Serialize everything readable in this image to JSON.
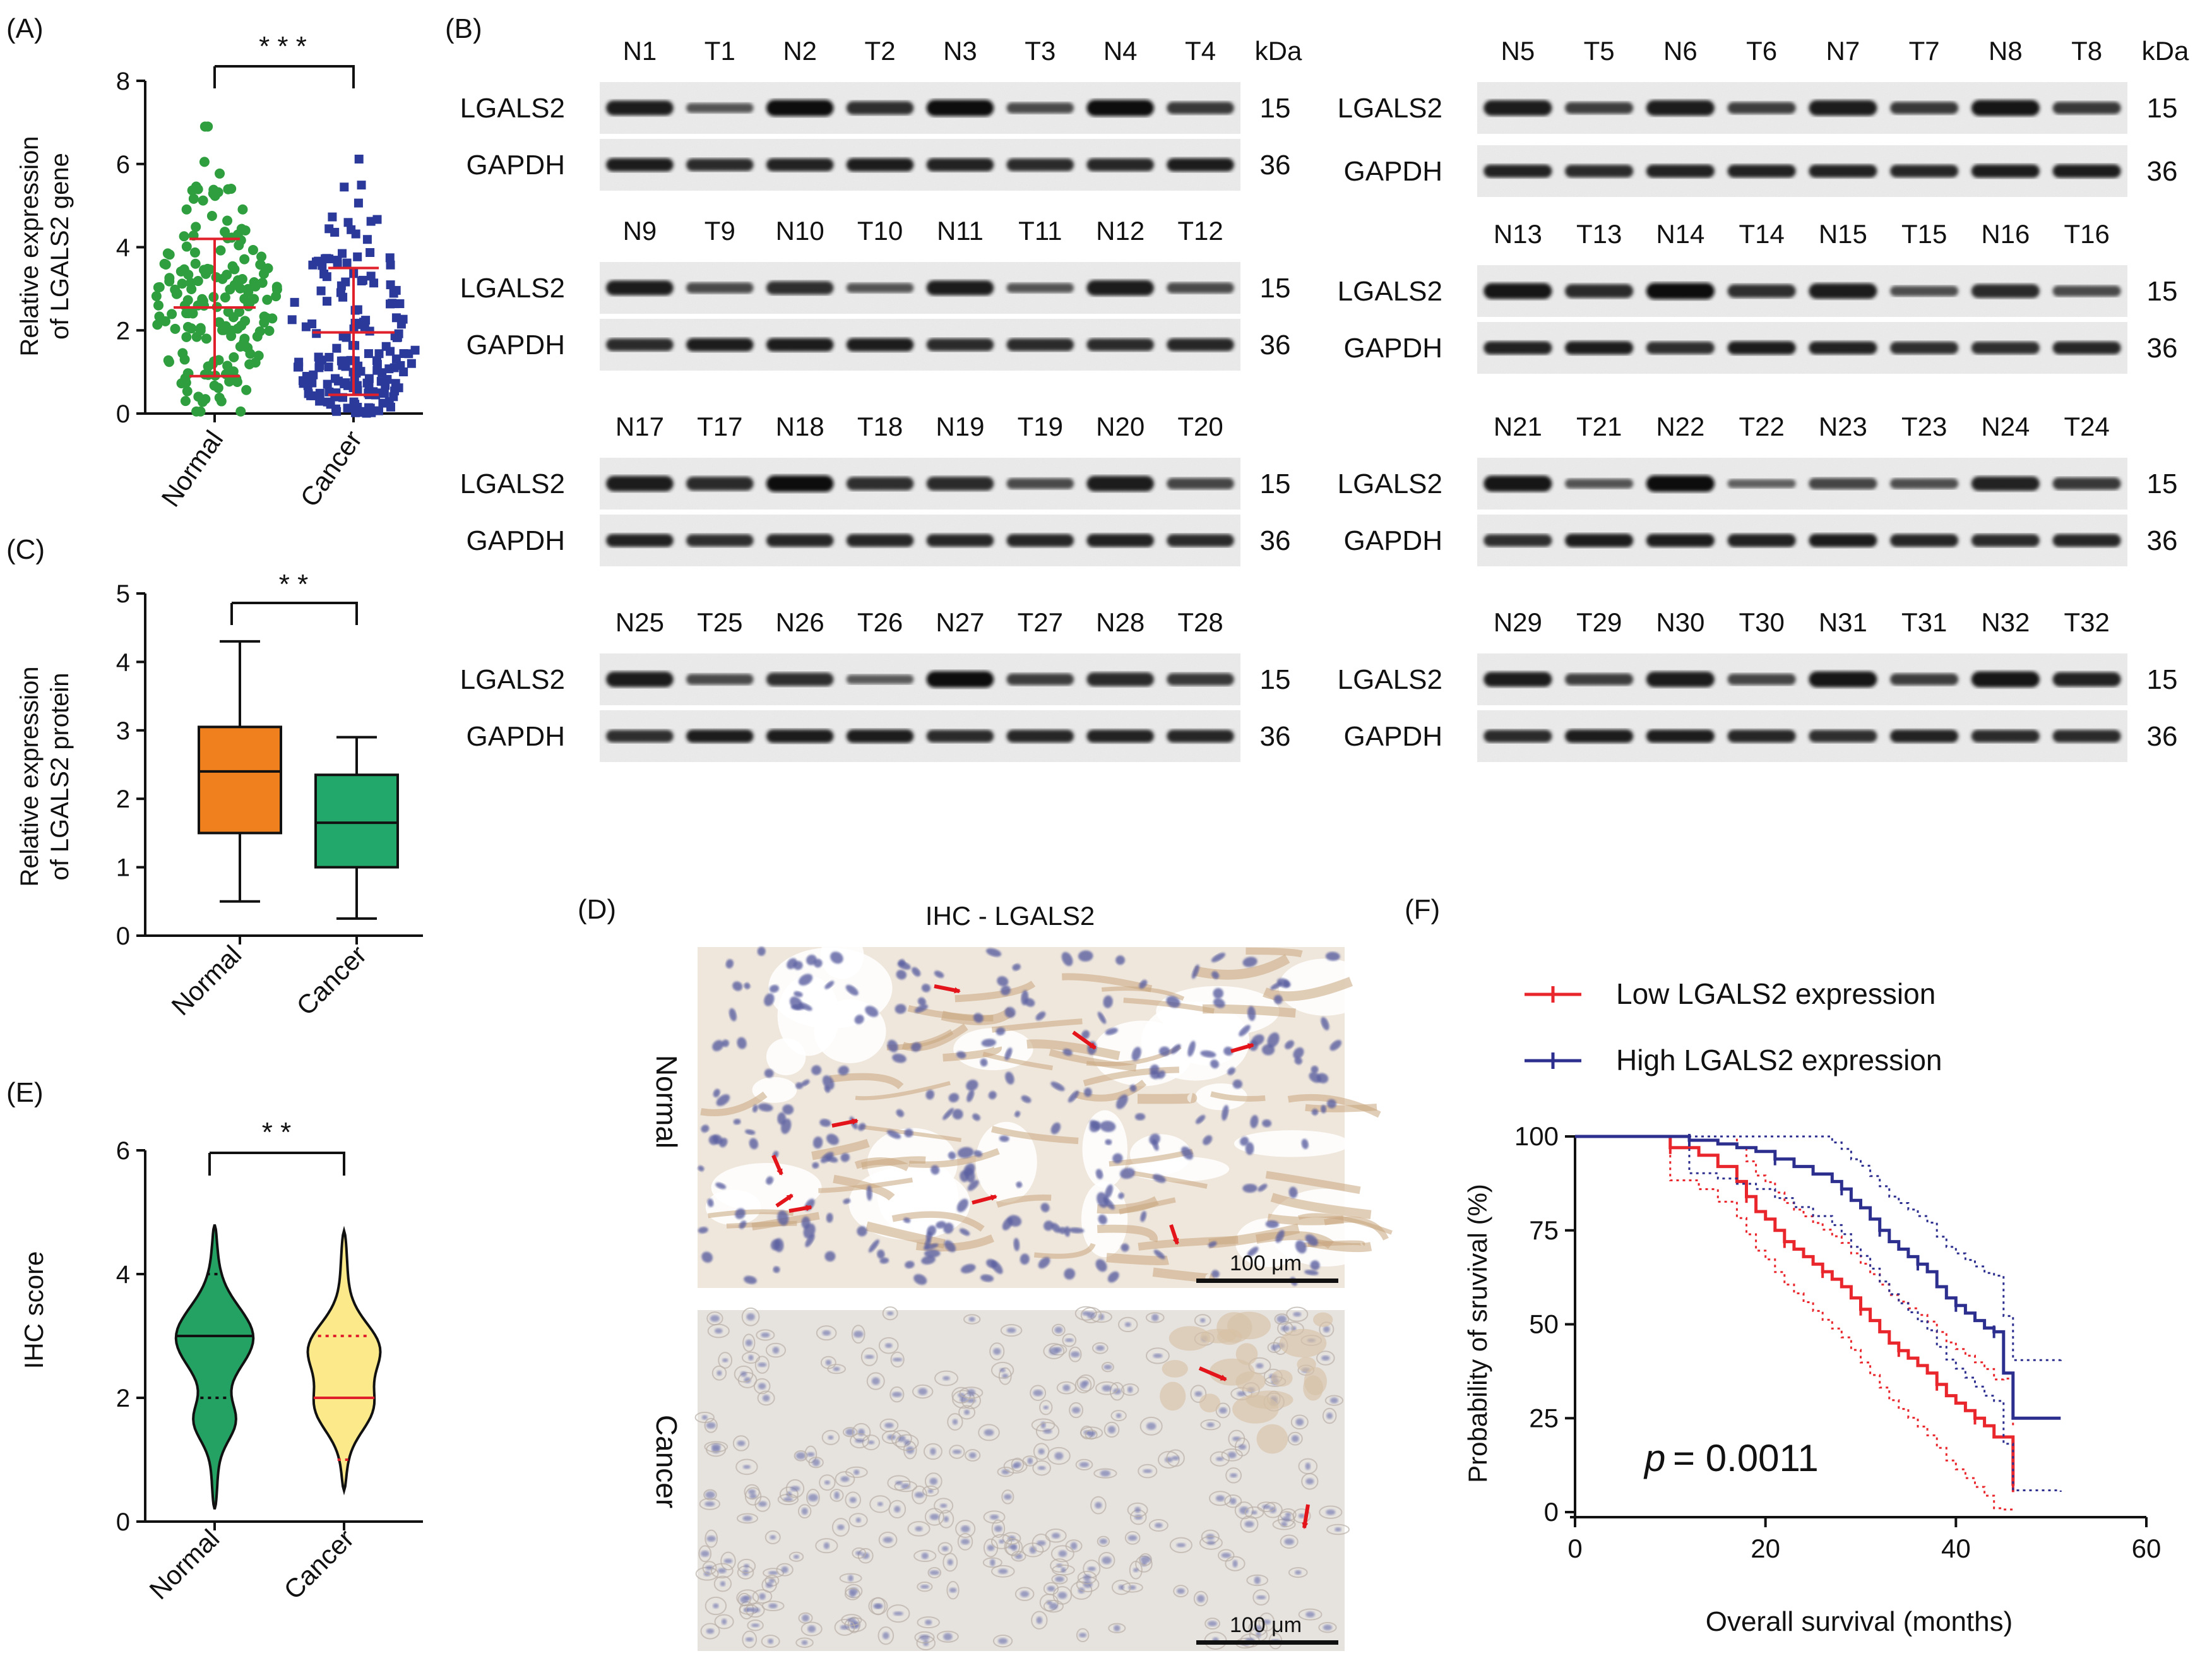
{
  "colors": {
    "normal_green": "#2e9e3e",
    "cancer_blue": "#2b3a9a",
    "median_red": "#e0202a",
    "box_orange": "#f07f1e",
    "box_green": "#22a86b",
    "violin_green": "#23a263",
    "violin_yellow": "#fbe98a",
    "km_red": "#e8262c",
    "km_blue": "#2d2f8f",
    "blot_bg": "#ececec",
    "ihc_tissue": "#e8ddd0",
    "ihc_nuclei": "#5a5fa0"
  },
  "panel_labels": {
    "a": "(A)",
    "b": "(B)",
    "c": "(C)",
    "d": "(D)",
    "e": "(E)",
    "f": "(F)"
  },
  "panel_a": {
    "ylabel_line1": "Relative expression",
    "ylabel_line2": "of LGALS2 gene",
    "significance": "* * *",
    "categories": [
      "Normal",
      "Cancer"
    ],
    "chart_data": {
      "type": "scatter",
      "categories": [
        "Normal",
        "Cancer"
      ],
      "ylim": [
        0,
        8
      ],
      "yticks": [
        "0",
        "2",
        "4",
        "6",
        "8"
      ],
      "series": [
        {
          "name": "Normal",
          "mean": 2.55,
          "sd_low": 0.9,
          "sd_high": 4.2,
          "max": 6.9,
          "min": 0.05
        },
        {
          "name": "Cancer",
          "mean": 1.95,
          "sd_low": 0.45,
          "sd_high": 3.5,
          "max": 6.2,
          "min": 0.05
        }
      ]
    }
  },
  "panel_b": {
    "kda_label": "kDa",
    "blots": [
      {
        "lanes": [
          "N1",
          "T1",
          "N2",
          "T2",
          "N3",
          "T3",
          "N4",
          "T4"
        ],
        "show_kda": true,
        "protein": "LGALS2",
        "control": "GAPDH",
        "mw_protein": "15",
        "mw_control": "36"
      },
      {
        "lanes": [
          "N5",
          "T5",
          "N6",
          "T6",
          "N7",
          "T7",
          "N8",
          "T8"
        ],
        "show_kda": true,
        "protein": "LGALS2",
        "control": "GAPDH",
        "mw_protein": "15",
        "mw_control": "36"
      },
      {
        "lanes": [
          "N9",
          "T9",
          "N10",
          "T10",
          "N11",
          "T11",
          "N12",
          "T12"
        ],
        "show_kda": false,
        "protein": "LGALS2",
        "control": "GAPDH",
        "mw_protein": "15",
        "mw_control": "36"
      },
      {
        "lanes": [
          "N13",
          "T13",
          "N14",
          "T14",
          "N15",
          "T15",
          "N16",
          "T16"
        ],
        "show_kda": false,
        "protein": "LGALS2",
        "control": "GAPDH",
        "mw_protein": "15",
        "mw_control": "36"
      },
      {
        "lanes": [
          "N17",
          "T17",
          "N18",
          "T18",
          "N19",
          "T19",
          "N20",
          "T20"
        ],
        "show_kda": false,
        "protein": "LGALS2",
        "control": "GAPDH",
        "mw_protein": "15",
        "mw_control": "36"
      },
      {
        "lanes": [
          "N21",
          "T21",
          "N22",
          "T22",
          "N23",
          "T23",
          "N24",
          "T24"
        ],
        "show_kda": false,
        "protein": "LGALS2",
        "control": "GAPDH",
        "mw_protein": "15",
        "mw_control": "36"
      },
      {
        "lanes": [
          "N25",
          "T25",
          "N26",
          "T26",
          "N27",
          "T27",
          "N28",
          "T28"
        ],
        "show_kda": false,
        "protein": "LGALS2",
        "control": "GAPDH",
        "mw_protein": "15",
        "mw_control": "36"
      },
      {
        "lanes": [
          "N29",
          "T29",
          "N30",
          "T30",
          "N31",
          "T31",
          "N32",
          "T32"
        ],
        "show_kda": false,
        "protein": "LGALS2",
        "control": "GAPDH",
        "mw_protein": "15",
        "mw_control": "36"
      }
    ]
  },
  "panel_c": {
    "ylabel_line1": "Relative expression",
    "ylabel_line2": "of LGALS2 protein",
    "significance": "* *",
    "categories": [
      "Normal",
      "Cancer"
    ],
    "chart_data": {
      "type": "box",
      "categories": [
        "Normal",
        "Cancer"
      ],
      "ylim": [
        0,
        5
      ],
      "yticks": [
        "0",
        "1",
        "2",
        "3",
        "4",
        "5"
      ],
      "boxes": [
        {
          "name": "Normal",
          "min": 0.5,
          "q1": 1.5,
          "median": 2.4,
          "q3": 3.05,
          "max": 4.3
        },
        {
          "name": "Cancer",
          "min": 0.25,
          "q1": 1.0,
          "median": 1.65,
          "q3": 2.35,
          "max": 2.9
        }
      ]
    }
  },
  "panel_d": {
    "title": "IHC - LGALS2",
    "row_labels": [
      "Normal",
      "Cancer"
    ],
    "scale_bar": "100 μm"
  },
  "panel_e": {
    "ylabel": "IHC score",
    "significance": "* *",
    "categories": [
      "Normal",
      "Cancer"
    ],
    "chart_data": {
      "type": "violin",
      "categories": [
        "Normal",
        "Cancer"
      ],
      "ylim": [
        0,
        6
      ],
      "yticks": [
        "0",
        "2",
        "4",
        "6"
      ],
      "violins": [
        {
          "name": "Normal",
          "min": 0.2,
          "max": 4.8,
          "median": 3.0,
          "q1": 2.0,
          "q3": 4.0
        },
        {
          "name": "Cancer",
          "min": 0.5,
          "max": 4.7,
          "median": 2.0,
          "q1": 1.0,
          "q3": 3.0
        }
      ]
    }
  },
  "panel_f": {
    "legend": [
      "Low LGALS2 expression",
      "High LGALS2 expression"
    ],
    "ylabel": "Probability of sruvival (%)",
    "xlabel": "Overall survival (months)",
    "p_label": "p",
    "p_value": "= 0.0011",
    "chart_data": {
      "type": "line",
      "xlim": [
        0,
        60
      ],
      "ylim": [
        0,
        100
      ],
      "xticks": [
        "0",
        "20",
        "40",
        "60"
      ],
      "yticks": [
        "0",
        "25",
        "50",
        "75",
        "100"
      ],
      "series": [
        {
          "name": "Low LGALS2 expression",
          "x": [
            0,
            6,
            10,
            13,
            15,
            17,
            18,
            19,
            20,
            21,
            22,
            23,
            24,
            25,
            26,
            27,
            28,
            29,
            30,
            31,
            32,
            33,
            34,
            35,
            36,
            37,
            38,
            39,
            40,
            41,
            42,
            43,
            44,
            45,
            46
          ],
          "y": [
            100,
            100,
            97,
            95,
            92,
            88,
            84,
            80,
            78,
            75,
            72,
            70,
            68,
            66,
            64,
            62,
            60,
            57,
            54,
            51,
            48,
            45,
            43,
            41,
            39,
            37,
            34,
            31,
            29,
            27,
            25,
            23,
            20,
            20,
            7
          ]
        },
        {
          "name": "High LGALS2 expression",
          "x": [
            0,
            6,
            12,
            15,
            17,
            19,
            21,
            23,
            25,
            27,
            28,
            29,
            30,
            31,
            32,
            33,
            34,
            35,
            36,
            37,
            38,
            39,
            40,
            41,
            42,
            43,
            44,
            45,
            46,
            51
          ],
          "y": [
            100,
            100,
            99,
            98,
            97,
            96,
            94,
            92,
            90,
            88,
            86,
            83,
            81,
            78,
            75,
            72,
            70,
            68,
            66,
            64,
            60,
            57,
            55,
            53,
            51,
            49,
            48,
            37,
            25,
            25
          ]
        }
      ]
    }
  }
}
